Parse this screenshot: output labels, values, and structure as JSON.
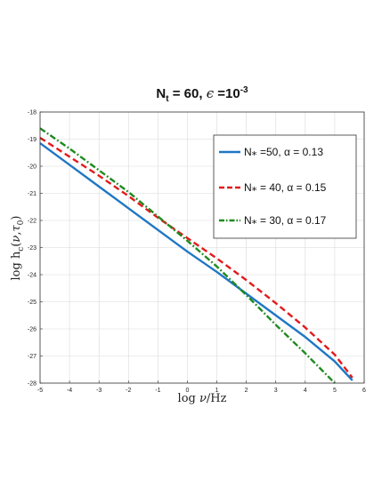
{
  "chart_data": {
    "type": "line",
    "title_parts": [
      "N",
      "t",
      " = 60, ",
      "ϵ",
      " =10",
      "-3"
    ],
    "xlabel_parts": [
      "log ",
      "ν",
      "/Hz"
    ],
    "ylabel_parts": [
      "log h",
      "c",
      "(",
      "ν",
      ",",
      "τ",
      "0",
      ")"
    ],
    "xlim": [
      -5,
      6
    ],
    "ylim": [
      -28,
      -18
    ],
    "xticks": [
      "-5",
      "-4",
      "-3",
      "-2",
      "-1",
      "0",
      "1",
      "2",
      "3",
      "4",
      "5",
      "6"
    ],
    "yticks": [
      "-18",
      "-19",
      "-20",
      "-21",
      "-22",
      "-23",
      "-24",
      "-25",
      "-26",
      "-27",
      "-28"
    ],
    "grid": true,
    "legend_position": "top-right",
    "series": [
      {
        "name": "N⁎ =50, α = 0.13",
        "color": "#1f77c4",
        "style": "solid",
        "x": [
          -5,
          -4,
          -3,
          -2,
          -1,
          0,
          1,
          2,
          3,
          4,
          5,
          5.6
        ],
        "y": [
          -19.15,
          -19.95,
          -20.75,
          -21.55,
          -22.35,
          -23.15,
          -23.9,
          -24.7,
          -25.5,
          -26.3,
          -27.2,
          -27.9
        ]
      },
      {
        "name": "N⁎ = 40, α = 0.15",
        "color": "#e31a1c",
        "style": "dashed",
        "x": [
          -5,
          -4,
          -3,
          -2,
          -1,
          0,
          1,
          2,
          3,
          4,
          5,
          5.6
        ],
        "y": [
          -18.95,
          -19.65,
          -20.35,
          -21.1,
          -21.9,
          -22.65,
          -23.4,
          -24.2,
          -25.05,
          -25.95,
          -26.95,
          -27.8
        ]
      },
      {
        "name": "N⁎ = 30, α = 0.17",
        "color": "#1e8a1e",
        "style": "dashdot",
        "x": [
          -5,
          -4,
          -3,
          -2,
          -1,
          0,
          1,
          2,
          3,
          4,
          5
        ],
        "y": [
          -18.6,
          -19.35,
          -20.15,
          -20.95,
          -21.85,
          -22.75,
          -23.7,
          -24.75,
          -25.85,
          -26.9,
          -28.0
        ]
      }
    ]
  }
}
